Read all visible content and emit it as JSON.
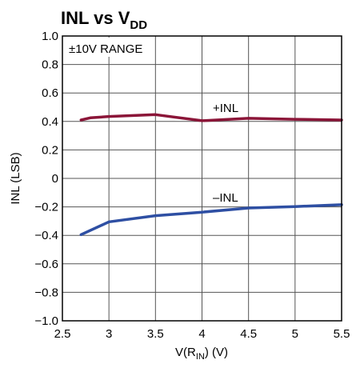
{
  "chart_data": {
    "type": "line",
    "title": "INL vs V",
    "title_subscript": "DD",
    "xlabel": {
      "prefix": "V(R",
      "subscript": "IN",
      "suffix": ") (V)"
    },
    "ylabel": "INL (LSB)",
    "xlim": [
      2.5,
      5.5
    ],
    "ylim": [
      -1.0,
      1.0
    ],
    "x_ticks": [
      "2.5",
      "3",
      "3.5",
      "4",
      "4.5",
      "5",
      "5.5"
    ],
    "x_tick_values": [
      2.5,
      3,
      3.5,
      4,
      4.5,
      5,
      5.5
    ],
    "y_ticks": [
      "1.0",
      "0.8",
      "0.6",
      "0.4",
      "0.2",
      "0",
      "−0.2",
      "−0.4",
      "−0.6",
      "−0.8",
      "−1.0"
    ],
    "y_tick_values": [
      1.0,
      0.8,
      0.6,
      0.4,
      0.2,
      0,
      -0.2,
      -0.4,
      -0.6,
      -0.8,
      -1.0
    ],
    "grid": true,
    "annotations": [
      "±10V RANGE",
      "+INL",
      "–INL"
    ],
    "series": [
      {
        "name": "+INL",
        "color": "#8b1538",
        "x": [
          2.7,
          2.8,
          3.0,
          3.5,
          4.0,
          4.5,
          5.0,
          5.5
        ],
        "y": [
          0.41,
          0.425,
          0.435,
          0.448,
          0.405,
          0.422,
          0.415,
          0.41
        ]
      },
      {
        "name": "–INL",
        "color": "#2e4fa3",
        "x": [
          2.7,
          3.0,
          3.5,
          4.0,
          4.5,
          5.0,
          5.5
        ],
        "y": [
          -0.395,
          -0.305,
          -0.262,
          -0.237,
          -0.208,
          -0.198,
          -0.185
        ]
      }
    ]
  }
}
